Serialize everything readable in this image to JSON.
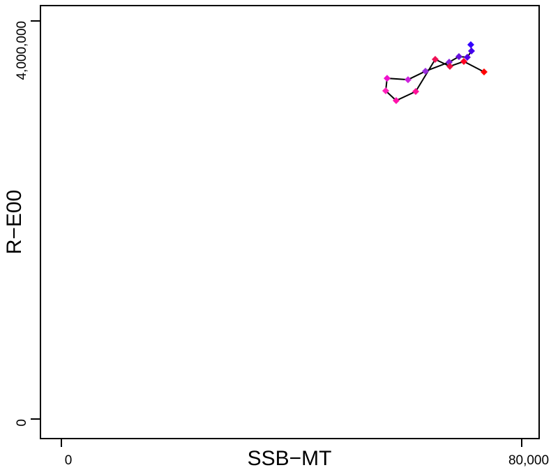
{
  "chart_data": {
    "type": "line",
    "x_label": "SSB−MT",
    "y_label": "R−E00",
    "xlim": [
      -3636,
      83030
    ],
    "ylim": [
      -196491,
      4154386
    ],
    "xticks": [
      0,
      {
        "value": 80000,
        "label": "80,000"
      }
    ],
    "yticks": [
      0,
      {
        "value": 4000000,
        "label": "4,000,000"
      }
    ],
    "line_color": "#000000",
    "x": [
      71152,
      71273,
      70545,
      69091,
      67394,
      63273,
      60242,
      56606,
      56364,
      58182,
      61576,
      64970,
      67515,
      69939,
      73455
    ],
    "values": [
      3761000,
      3698000,
      3635000,
      3642000,
      3586000,
      3495000,
      3410000,
      3424000,
      3298000,
      3200000,
      3291000,
      3614000,
      3544000,
      3593000,
      3488000
    ],
    "colors": [
      "#3300ff",
      "#4400ee",
      "#5500e6",
      "#6611dd",
      "#8822dd",
      "#9a2ddd",
      "#cc22dd",
      "#ee11cc",
      "#ff22bb",
      "#ff11aa",
      "#ff1199",
      "#ee1155",
      "#ee1144",
      "#ff0022",
      "#ff0000"
    ]
  }
}
